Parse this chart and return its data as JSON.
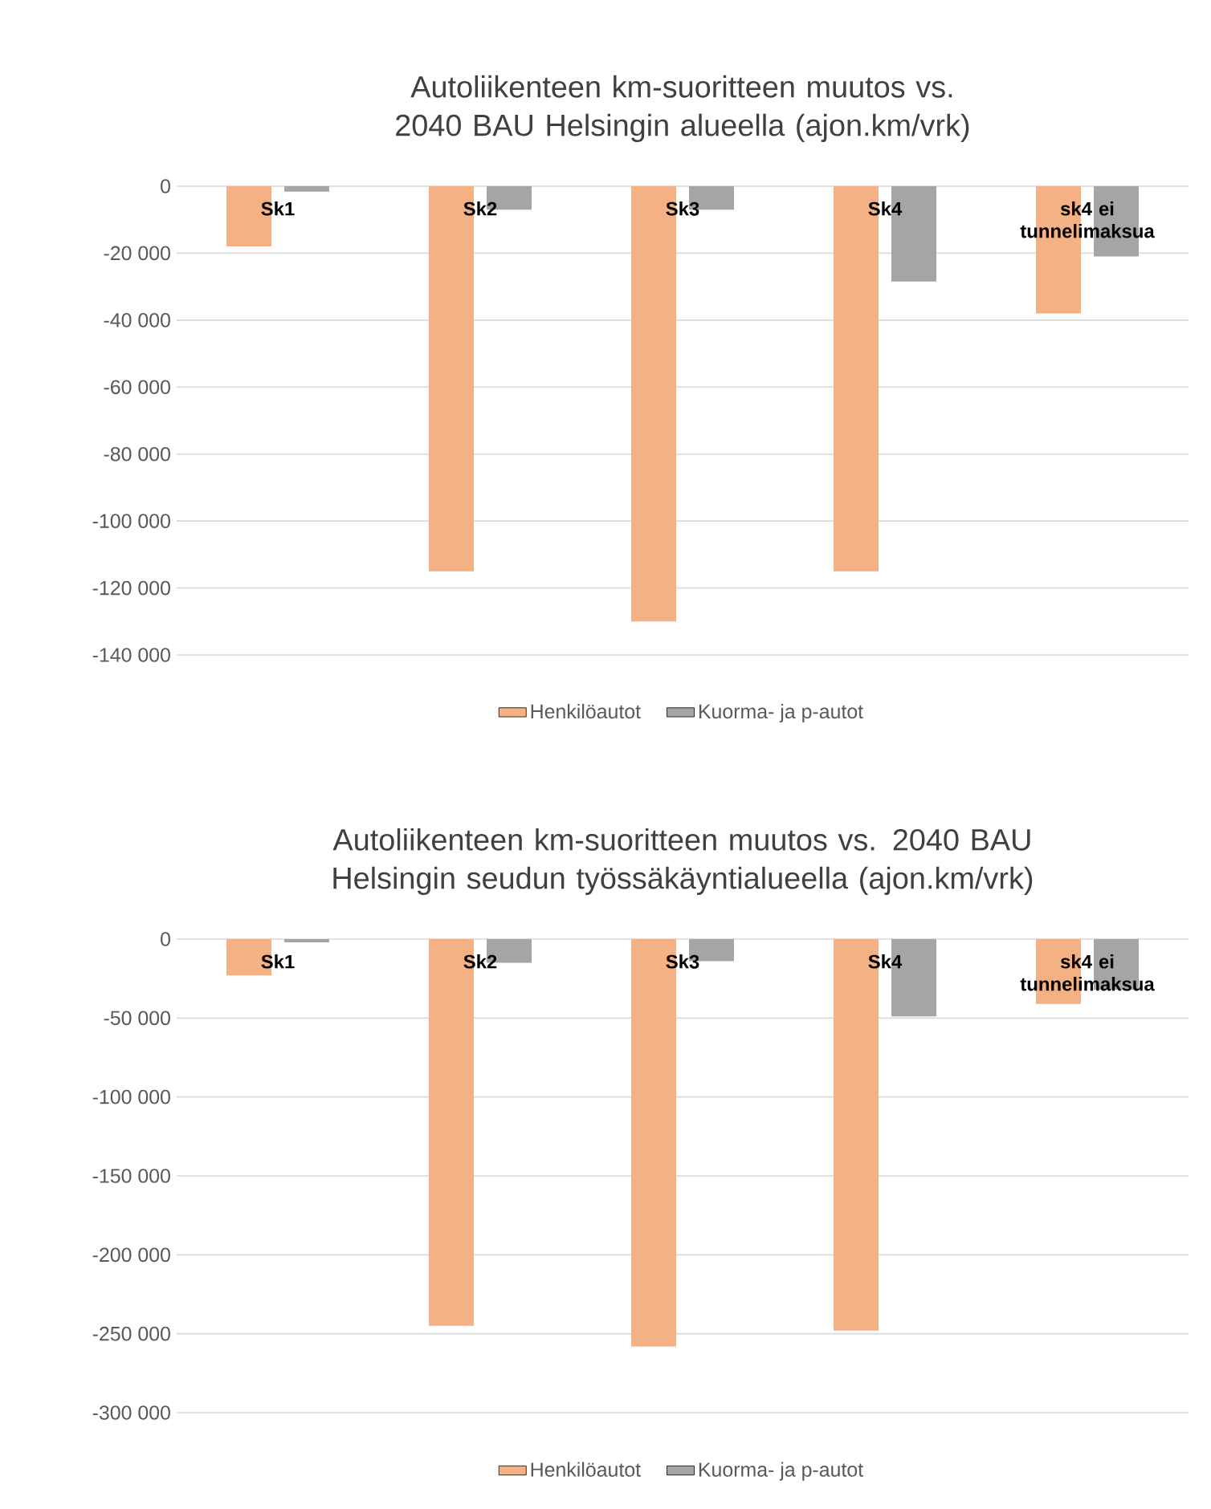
{
  "chart_data": [
    {
      "type": "bar",
      "title": "Autoliikenteen km-suoritteen muutos vs. 2040 BAU Helsingin alueella (ajon.km/vrk)",
      "categories": [
        "Sk1",
        "Sk2",
        "Sk3",
        "Sk4",
        "sk4 ei tunnelimaksua"
      ],
      "series": [
        {
          "name": "Henkilöautot",
          "color": "#f4b183",
          "values": [
            -18000,
            -115000,
            -130000,
            -115000,
            -38000
          ]
        },
        {
          "name": "Kuorma- ja p-autot",
          "color": "#a5a5a5",
          "values": [
            -1600,
            -7000,
            -7000,
            -28500,
            -21000
          ]
        }
      ],
      "ylim": [
        -140000,
        0
      ],
      "yticks": [
        {
          "value": -140000,
          "label": "-140 000"
        },
        {
          "value": -120000,
          "label": "-120 000"
        },
        {
          "value": -100000,
          "label": "-100 000"
        },
        {
          "value": -80000,
          "label": "-80 000"
        },
        {
          "value": -60000,
          "label": "-60 000"
        },
        {
          "value": -40000,
          "label": "-40 000"
        },
        {
          "value": -20000,
          "label": "-20 000"
        },
        0
      ],
      "grid": "y",
      "legend": "bottom"
    },
    {
      "type": "bar",
      "title": "Autoliikenteen km-suoritteen muutos vs. 2040 BAU Helsingin seudun työssäkäyntialueella (ajon.km/vrk)",
      "categories": [
        "Sk1",
        "Sk2",
        "Sk3",
        "Sk4",
        "sk4 ei tunnelimaksua"
      ],
      "series": [
        {
          "name": "Henkilöautot",
          "color": "#f4b183",
          "values": [
            -23000,
            -245000,
            -258000,
            -248000,
            -41000
          ]
        },
        {
          "name": "Kuorma- ja p-autot",
          "color": "#a5a5a5",
          "values": [
            -2000,
            -15000,
            -14000,
            -49000,
            -32000
          ]
        }
      ],
      "ylim": [
        -300000,
        0
      ],
      "yticks": [
        {
          "value": -300000,
          "label": "-300 000"
        },
        {
          "value": -250000,
          "label": "-250 000"
        },
        {
          "value": -200000,
          "label": "-200 000"
        },
        {
          "value": -150000,
          "label": "-150 000"
        },
        {
          "value": -100000,
          "label": "-100 000"
        },
        {
          "value": -50000,
          "label": "-50 000"
        },
        0
      ],
      "grid": "y",
      "legend": "bottom"
    }
  ]
}
